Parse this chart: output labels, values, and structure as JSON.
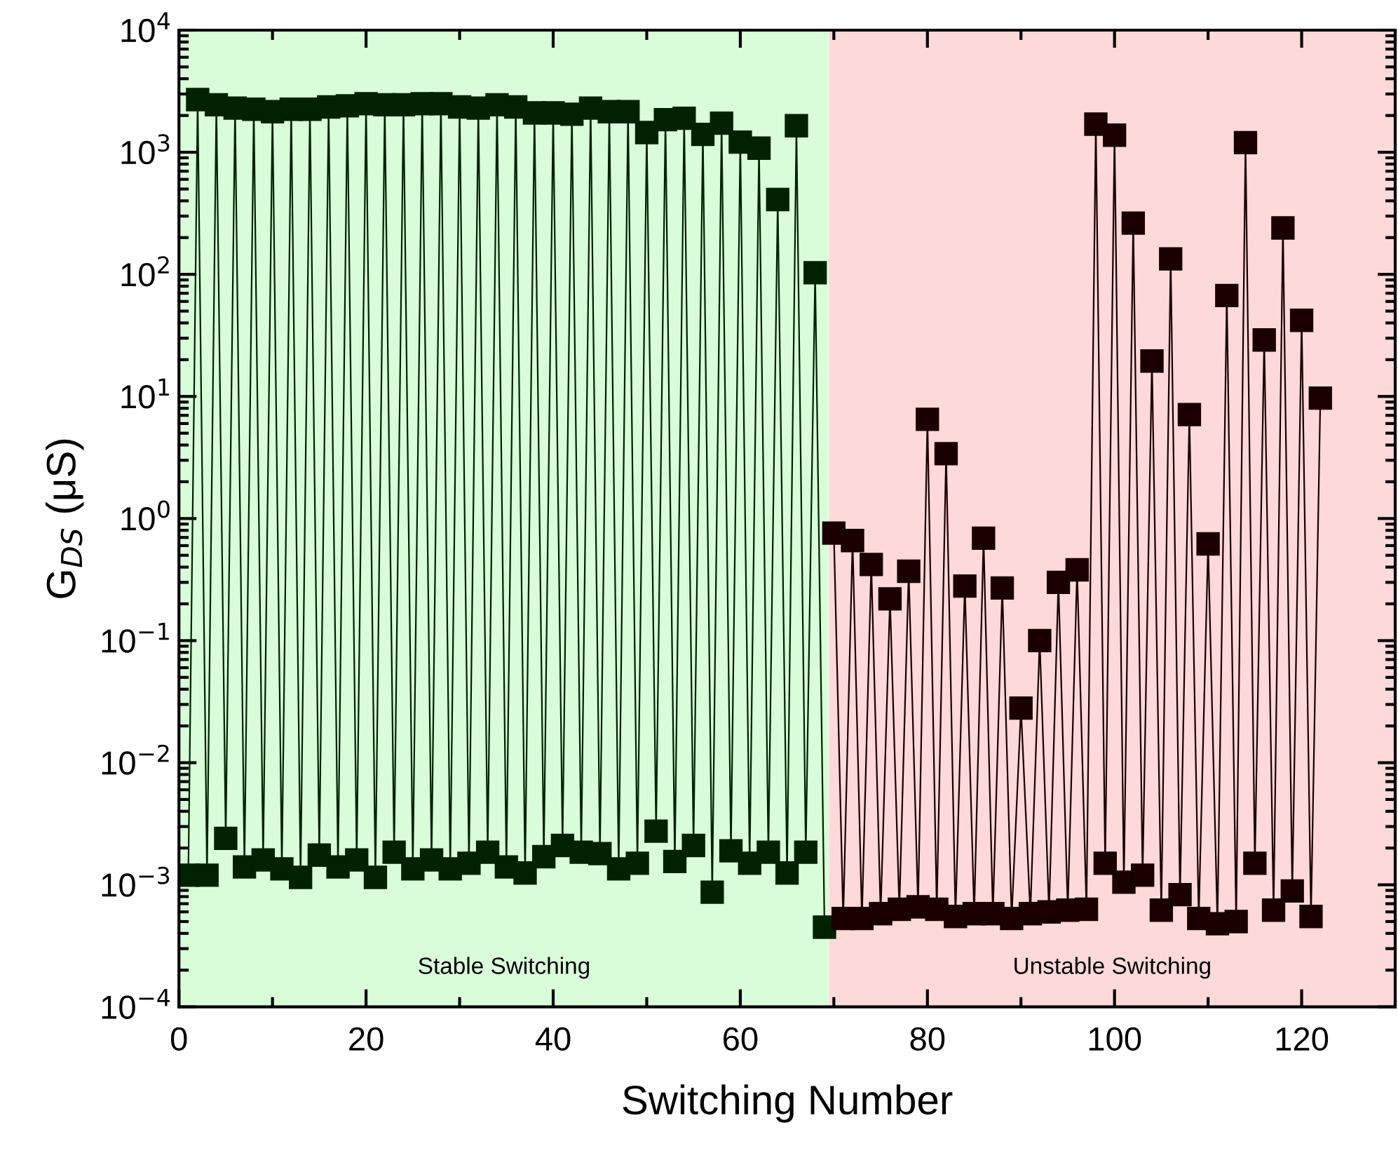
{
  "chart_data": {
    "type": "line",
    "xlabel": "Switching Number",
    "ylabel": "G$_{DS}$ (μS)",
    "log": "y",
    "marker": "square",
    "line_style": "solid",
    "grid": false,
    "legend": false,
    "xlim": [
      0,
      130
    ],
    "xticks": [
      0,
      20,
      40,
      60,
      80,
      100,
      120
    ],
    "ylim": [
      0.0001,
      10000
    ],
    "yticks": [
      {
        "value": 0.0001,
        "label": "10$^{−4}$"
      },
      {
        "value": 0.001,
        "label": "10$^{−3}$"
      },
      {
        "value": 0.01,
        "label": "10$^{−2}$"
      },
      {
        "value": 0.1,
        "label": "10$^{−1}$"
      },
      {
        "value": 1,
        "label": "10$^{0}$"
      },
      {
        "value": 10,
        "label": "10$^{1}$"
      },
      {
        "value": 100,
        "label": "10$^{2}$"
      },
      {
        "value": 1000,
        "label": "10$^{3}$"
      },
      {
        "value": 10000,
        "label": "10$^{4}$"
      }
    ],
    "bands": [
      {
        "axis": "x",
        "from": 0,
        "to": 69.5,
        "label": "Stable Switching",
        "color": "#d9fdd9"
      },
      {
        "axis": "x",
        "from": 69.5,
        "to": 130,
        "label": "Unstable Switching",
        "color": "#fdd9d9"
      }
    ],
    "series": [
      {
        "color": "#002200",
        "x": [
          1,
          2,
          3,
          4,
          5,
          6,
          7,
          8,
          9,
          10,
          11,
          12,
          13,
          14,
          15,
          16,
          17,
          18,
          19,
          20,
          21,
          22,
          23,
          24,
          25,
          26,
          27,
          28,
          29,
          30,
          31,
          32,
          33,
          34,
          35,
          36,
          37,
          38,
          39,
          40,
          41,
          42,
          43,
          44,
          45,
          46,
          47,
          48,
          49,
          50,
          51,
          52,
          53,
          54,
          55,
          56,
          57,
          58,
          59,
          60,
          61,
          62,
          63,
          64,
          65,
          66,
          67,
          68,
          69
        ],
        "values": [
          0.0012,
          2700,
          0.0012,
          2450,
          0.0024,
          2300,
          0.0014,
          2250,
          0.0016,
          2150,
          0.00135,
          2250,
          0.00115,
          2250,
          0.00175,
          2350,
          0.0014,
          2400,
          0.0016,
          2500,
          0.00115,
          2450,
          0.00185,
          2450,
          0.00135,
          2500,
          0.0016,
          2500,
          0.00135,
          2350,
          0.0015,
          2300,
          0.00185,
          2450,
          0.0014,
          2350,
          0.00125,
          2100,
          0.0017,
          2100,
          0.0021,
          2050,
          0.00185,
          2300,
          0.0018,
          2150,
          0.00135,
          2150,
          0.0015,
          1450,
          0.00275,
          1850,
          0.00155,
          1900,
          0.0021,
          1400,
          0.00087,
          1730,
          0.0019,
          1210,
          0.0015,
          1080,
          0.00185,
          410,
          0.00125,
          1650,
          0.00185,
          103,
          0.00045
        ]
      },
      {
        "color": "#1a0000",
        "x": [
          70,
          71,
          72,
          73,
          74,
          75,
          76,
          77,
          78,
          79,
          80,
          81,
          82,
          83,
          84,
          85,
          86,
          87,
          88,
          89,
          90,
          91,
          92,
          93,
          94,
          95,
          96,
          97,
          98,
          99,
          100,
          101,
          102,
          103,
          104,
          105,
          106,
          107,
          108,
          109,
          110,
          111,
          112,
          113,
          114,
          115,
          116,
          117,
          118,
          119,
          120,
          121,
          122
        ],
        "values": [
          0.76,
          0.00053,
          0.66,
          0.00053,
          0.42,
          0.00058,
          0.22,
          0.00063,
          0.37,
          0.00066,
          6.5,
          0.00063,
          3.4,
          0.00055,
          0.28,
          0.00058,
          0.69,
          0.00058,
          0.27,
          0.00053,
          0.028,
          0.00058,
          0.1,
          0.0006,
          0.3,
          0.00062,
          0.38,
          0.00063,
          1700,
          0.0015,
          1380,
          0.00105,
          263,
          0.0012,
          19.5,
          0.00062,
          134,
          0.00083,
          7.1,
          0.00053,
          0.62,
          0.00048,
          67,
          0.0005,
          1200,
          0.0015,
          29,
          0.00062,
          240,
          0.00089,
          42,
          0.00055,
          9.7
        ]
      }
    ]
  }
}
